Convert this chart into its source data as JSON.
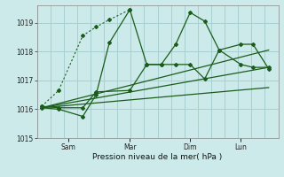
{
  "xlabel": "Pression niveau de la mer( hPa )",
  "ylim": [
    1015,
    1019.6
  ],
  "yticks": [
    1015,
    1016,
    1017,
    1018,
    1019
  ],
  "bg_color": "#cdeaea",
  "grid_color": "#a8d0d0",
  "line_color": "#1a5c1a",
  "xtick_labels": [
    "Sam",
    "Mar",
    "Dim",
    "Lun"
  ],
  "xtick_positions": [
    0.13,
    0.385,
    0.635,
    0.845
  ],
  "series1_x": [
    0.02,
    0.09,
    0.19,
    0.245,
    0.3,
    0.385,
    0.455,
    0.515,
    0.575,
    0.635,
    0.695,
    0.755,
    0.845,
    0.895,
    0.96
  ],
  "series1_y": [
    1016.05,
    1016.0,
    1015.75,
    1016.5,
    1018.3,
    1019.45,
    1017.55,
    1017.55,
    1018.25,
    1019.35,
    1019.05,
    1018.05,
    1018.25,
    1018.25,
    1017.4
  ],
  "series2_x": [
    0.02,
    0.09,
    0.19,
    0.245,
    0.385,
    0.455,
    0.515,
    0.575,
    0.635,
    0.695,
    0.755,
    0.845,
    0.895,
    0.96
  ],
  "series2_y": [
    1016.1,
    1016.05,
    1016.05,
    1016.6,
    1016.65,
    1017.55,
    1017.55,
    1017.55,
    1017.55,
    1017.05,
    1018.05,
    1017.55,
    1017.45,
    1017.45
  ],
  "dotted_x": [
    0.02,
    0.09,
    0.19,
    0.245,
    0.3,
    0.385
  ],
  "dotted_y": [
    1016.1,
    1016.65,
    1018.55,
    1018.85,
    1019.1,
    1019.45
  ],
  "trend_lines": [
    {
      "x": [
        0.02,
        0.96
      ],
      "y": [
        1016.05,
        1017.45
      ]
    },
    {
      "x": [
        0.02,
        0.96
      ],
      "y": [
        1016.05,
        1018.05
      ]
    },
    {
      "x": [
        0.02,
        0.96
      ],
      "y": [
        1016.05,
        1016.75
      ]
    }
  ]
}
